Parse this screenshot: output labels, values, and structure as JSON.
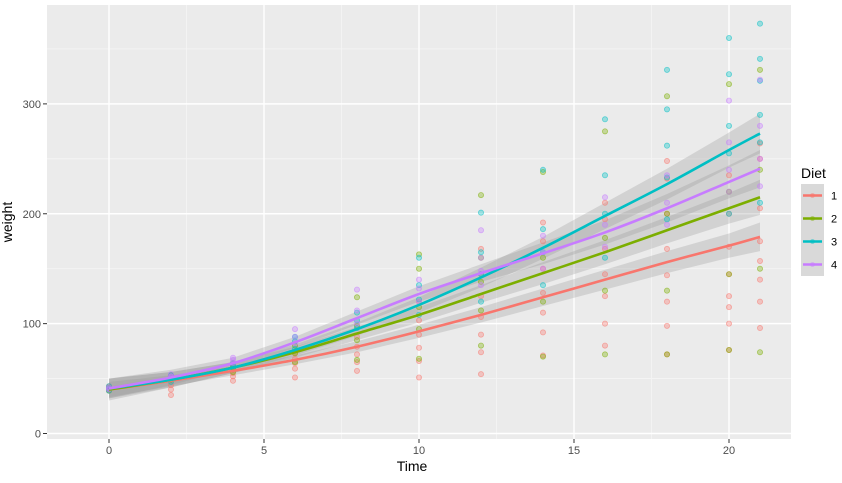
{
  "chart_data": {
    "type": "scatter",
    "title": "",
    "xlabel": "Time",
    "ylabel": "weight",
    "xlim": [
      -2,
      22
    ],
    "ylim": [
      -5,
      390
    ],
    "x_ticks": [
      0,
      5,
      10,
      15,
      20
    ],
    "y_ticks": [
      0,
      100,
      200,
      300
    ],
    "x_tick_labels": [
      "0",
      "5",
      "10",
      "15",
      "20"
    ],
    "y_tick_labels": [
      "0",
      "100",
      "200",
      "300"
    ],
    "grid": true,
    "panel_background": "#EBEBEB",
    "legend": {
      "title": "Diet",
      "position": "right"
    },
    "series": [
      {
        "name": "1",
        "color": "#F8766D",
        "smooth_x": [
          0,
          2,
          4,
          6,
          8,
          10,
          12,
          14,
          16,
          18,
          20,
          21
        ],
        "smooth_y": [
          40,
          48,
          57,
          67,
          79,
          93,
          108,
          124,
          140,
          156,
          171,
          179
        ],
        "band_halfwidth": [
          7,
          5,
          4,
          4,
          5,
          6,
          7,
          8,
          9,
          10,
          11,
          13
        ],
        "points": [
          [
            0,
            42
          ],
          [
            0,
            40
          ],
          [
            0,
            43
          ],
          [
            0,
            41
          ],
          [
            0,
            39
          ],
          [
            2,
            35
          ],
          [
            2,
            40
          ],
          [
            2,
            44
          ],
          [
            2,
            49
          ],
          [
            2,
            51
          ],
          [
            4,
            48
          ],
          [
            4,
            52
          ],
          [
            4,
            55
          ],
          [
            4,
            58
          ],
          [
            4,
            61
          ],
          [
            6,
            51
          ],
          [
            6,
            59
          ],
          [
            6,
            64
          ],
          [
            6,
            68
          ],
          [
            6,
            73
          ],
          [
            8,
            57
          ],
          [
            8,
            65
          ],
          [
            8,
            72
          ],
          [
            8,
            79
          ],
          [
            8,
            88
          ],
          [
            10,
            51
          ],
          [
            10,
            66
          ],
          [
            10,
            78
          ],
          [
            10,
            90
          ],
          [
            10,
            103
          ],
          [
            10,
            120
          ],
          [
            12,
            54
          ],
          [
            12,
            74
          ],
          [
            12,
            90
          ],
          [
            12,
            106
          ],
          [
            12,
            125
          ],
          [
            12,
            145
          ],
          [
            12,
            168
          ],
          [
            14,
            71
          ],
          [
            14,
            92
          ],
          [
            14,
            110
          ],
          [
            14,
            128
          ],
          [
            14,
            150
          ],
          [
            14,
            175
          ],
          [
            14,
            192
          ],
          [
            16,
            80
          ],
          [
            16,
            100
          ],
          [
            16,
            125
          ],
          [
            16,
            145
          ],
          [
            16,
            168
          ],
          [
            16,
            195
          ],
          [
            16,
            210
          ],
          [
            18,
            72
          ],
          [
            18,
            98
          ],
          [
            18,
            120
          ],
          [
            18,
            144
          ],
          [
            18,
            168
          ],
          [
            18,
            200
          ],
          [
            18,
            232
          ],
          [
            18,
            248
          ],
          [
            20,
            76
          ],
          [
            20,
            100
          ],
          [
            20,
            115
          ],
          [
            20,
            125
          ],
          [
            20,
            145
          ],
          [
            20,
            170
          ],
          [
            20,
            200
          ],
          [
            20,
            235
          ],
          [
            21,
            96
          ],
          [
            21,
            120
          ],
          [
            21,
            140
          ],
          [
            21,
            157
          ],
          [
            21,
            175
          ],
          [
            21,
            205
          ],
          [
            21,
            250
          ],
          [
            21,
            264
          ]
        ]
      },
      {
        "name": "2",
        "color": "#7CAE00",
        "smooth_x": [
          0,
          2,
          4,
          6,
          8,
          10,
          12,
          14,
          16,
          18,
          20,
          21
        ],
        "smooth_y": [
          40,
          49,
          60,
          74,
          91,
          108,
          127,
          146,
          165,
          185,
          205,
          215
        ],
        "band_halfwidth": [
          10,
          7,
          5,
          5,
          6,
          7,
          8,
          10,
          11,
          12,
          14,
          16
        ],
        "points": [
          [
            0,
            41
          ],
          [
            0,
            40
          ],
          [
            0,
            42
          ],
          [
            0,
            39
          ],
          [
            2,
            49
          ],
          [
            2,
            50
          ],
          [
            2,
            53
          ],
          [
            4,
            56
          ],
          [
            4,
            60
          ],
          [
            4,
            64
          ],
          [
            6,
            65
          ],
          [
            6,
            73
          ],
          [
            6,
            80
          ],
          [
            8,
            67
          ],
          [
            8,
            85
          ],
          [
            8,
            98
          ],
          [
            8,
            124
          ],
          [
            10,
            68
          ],
          [
            10,
            95
          ],
          [
            10,
            115
          ],
          [
            10,
            150
          ],
          [
            10,
            163
          ],
          [
            12,
            80
          ],
          [
            12,
            112
          ],
          [
            12,
            138
          ],
          [
            12,
            160
          ],
          [
            12,
            217
          ],
          [
            14,
            70
          ],
          [
            14,
            120
          ],
          [
            14,
            160
          ],
          [
            14,
            238
          ],
          [
            16,
            72
          ],
          [
            16,
            130
          ],
          [
            16,
            178
          ],
          [
            16,
            275
          ],
          [
            18,
            72
          ],
          [
            18,
            130
          ],
          [
            18,
            200
          ],
          [
            18,
            307
          ],
          [
            20,
            76
          ],
          [
            20,
            145
          ],
          [
            20,
            220
          ],
          [
            20,
            318
          ],
          [
            21,
            74
          ],
          [
            21,
            150
          ],
          [
            21,
            240
          ],
          [
            21,
            331
          ]
        ]
      },
      {
        "name": "3",
        "color": "#00BFC4",
        "smooth_x": [
          0,
          2,
          4,
          6,
          8,
          10,
          12,
          14,
          16,
          18,
          20,
          21
        ],
        "smooth_y": [
          41,
          49,
          60,
          76,
          95,
          117,
          142,
          169,
          198,
          227,
          258,
          273
        ],
        "band_halfwidth": [
          9,
          7,
          5,
          5,
          6,
          7,
          9,
          10,
          12,
          14,
          16,
          18
        ],
        "points": [
          [
            0,
            41
          ],
          [
            0,
            43
          ],
          [
            0,
            39
          ],
          [
            2,
            50
          ],
          [
            2,
            53
          ],
          [
            2,
            47
          ],
          [
            4,
            62
          ],
          [
            4,
            64
          ],
          [
            4,
            59
          ],
          [
            6,
            77
          ],
          [
            6,
            84
          ],
          [
            6,
            88
          ],
          [
            8,
            96
          ],
          [
            8,
            103
          ],
          [
            8,
            110
          ],
          [
            10,
            108
          ],
          [
            10,
            122
          ],
          [
            10,
            135
          ],
          [
            10,
            160
          ],
          [
            12,
            120
          ],
          [
            12,
            145
          ],
          [
            12,
            165
          ],
          [
            12,
            201
          ],
          [
            14,
            135
          ],
          [
            14,
            165
          ],
          [
            14,
            186
          ],
          [
            14,
            240
          ],
          [
            16,
            160
          ],
          [
            16,
            200
          ],
          [
            16,
            235
          ],
          [
            16,
            286
          ],
          [
            18,
            195
          ],
          [
            18,
            233
          ],
          [
            18,
            262
          ],
          [
            18,
            295
          ],
          [
            18,
            331
          ],
          [
            20,
            200
          ],
          [
            20,
            255
          ],
          [
            20,
            280
          ],
          [
            20,
            327
          ],
          [
            20,
            360
          ],
          [
            21,
            210
          ],
          [
            21,
            265
          ],
          [
            21,
            290
          ],
          [
            21,
            321
          ],
          [
            21,
            341
          ],
          [
            21,
            373
          ]
        ]
      },
      {
        "name": "4",
        "color": "#C77CFF",
        "smooth_x": [
          0,
          2,
          4,
          6,
          8,
          10,
          12,
          14,
          16,
          18,
          20,
          21
        ],
        "smooth_y": [
          41,
          51,
          64,
          83,
          105,
          127,
          146,
          164,
          183,
          205,
          229,
          241
        ],
        "band_halfwidth": [
          9,
          7,
          5,
          5,
          6,
          7,
          8,
          10,
          11,
          13,
          15,
          17
        ],
        "points": [
          [
            0,
            41
          ],
          [
            0,
            42
          ],
          [
            0,
            40
          ],
          [
            2,
            52
          ],
          [
            2,
            51
          ],
          [
            2,
            54
          ],
          [
            4,
            64
          ],
          [
            4,
            67
          ],
          [
            4,
            69
          ],
          [
            6,
            82
          ],
          [
            6,
            88
          ],
          [
            6,
            95
          ],
          [
            8,
            100
          ],
          [
            8,
            112
          ],
          [
            8,
            131
          ],
          [
            10,
            120
          ],
          [
            10,
            132
          ],
          [
            10,
            140
          ],
          [
            12,
            135
          ],
          [
            12,
            148
          ],
          [
            12,
            160
          ],
          [
            12,
            185
          ],
          [
            14,
            150
          ],
          [
            14,
            165
          ],
          [
            14,
            180
          ],
          [
            16,
            170
          ],
          [
            16,
            190
          ],
          [
            16,
            215
          ],
          [
            18,
            190
          ],
          [
            18,
            210
          ],
          [
            18,
            235
          ],
          [
            20,
            220
          ],
          [
            20,
            240
          ],
          [
            20,
            265
          ],
          [
            20,
            303
          ],
          [
            21,
            225
          ],
          [
            21,
            250
          ],
          [
            21,
            280
          ],
          [
            21,
            322
          ]
        ]
      }
    ]
  }
}
